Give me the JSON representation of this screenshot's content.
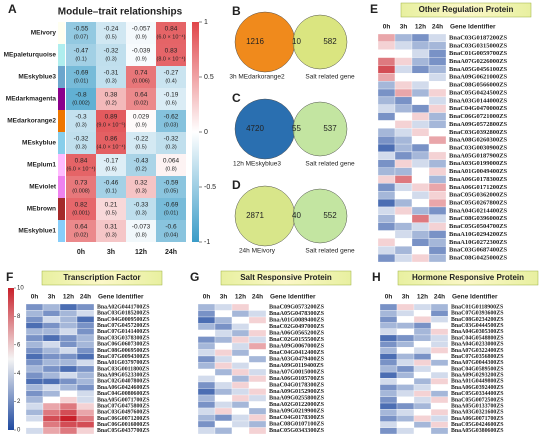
{
  "module_trait": {
    "label": "A",
    "title": "Module–trait relationships",
    "columns": [
      "0h",
      "3h",
      "12h",
      "24h"
    ],
    "rows": [
      "MEivory",
      "MEpaleturquoise",
      "MEskyblue3",
      "MEdarkmagenta",
      "MEdarkorange2",
      "MEskyblue",
      "MEplum1",
      "MEviolet",
      "MEbrown",
      "MEskyblue1"
    ],
    "module_colors": [
      "#fffff0",
      "#afeeee",
      "#6ca6cd",
      "#8b008b",
      "#ee7600",
      "#87ceeb",
      "#ffbbff",
      "#ee82ee",
      "#a52a2a",
      "#87cefa"
    ],
    "values": [
      [
        -0.55,
        -0.24,
        -0.057,
        0.84
      ],
      [
        -0.47,
        -0.32,
        -0.039,
        0.83
      ],
      [
        -0.69,
        -0.31,
        0.74,
        -0.27
      ],
      [
        -0.8,
        0.38,
        0.64,
        -0.19
      ],
      [
        -0.3,
        0.89,
        0.029,
        -0.62
      ],
      [
        -0.32,
        0.86,
        -0.22,
        -0.32
      ],
      [
        0.84,
        -0.17,
        -0.43,
        0.064
      ],
      [
        0.73,
        -0.46,
        0.32,
        -0.59
      ],
      [
        0.82,
        0.21,
        -0.33,
        -0.69
      ],
      [
        0.64,
        0.31,
        -0.073,
        -0.6
      ]
    ],
    "p_labels": [
      [
        "(0.07)",
        "(0.5)",
        "(0.9)",
        "(6.0 × 10⁻⁴)"
      ],
      [
        "(0.1)",
        "(0.3)",
        "(0.9)",
        "(8.0 × 10⁻⁴)"
      ],
      [
        "(0.01)",
        "(0.3)",
        "(0.006)",
        "(0.4)"
      ],
      [
        "(0.002)",
        "(0.2)",
        "(0.02)",
        "(0.6)"
      ],
      [
        "(0.3)",
        "(9.0 × 10⁻⁵)",
        "(0.9)",
        "(0.03)"
      ],
      [
        "(0.3)",
        "(4.0 × 10⁻⁴)",
        "(0.5)",
        "(0.3)"
      ],
      [
        "(6.0 × 10⁻⁴)",
        "(0.6)",
        "(0.2)",
        "(0.8)"
      ],
      [
        "(0.008)",
        "(0.1)",
        "(0.3)",
        "(0.05)"
      ],
      [
        "(0.001)",
        "(0.5)",
        "(0.3)",
        "(0.01)"
      ],
      [
        "(0.02)",
        "(0.3)",
        "(0.8)",
        "(0.04)"
      ]
    ],
    "clim": [
      -1,
      1
    ],
    "cticks": [
      1,
      0.5,
      0,
      -0.5,
      -1
    ]
  },
  "venns": [
    {
      "label": "B",
      "values": [
        1216,
        10,
        582
      ],
      "left_name": "3h MEdarkorange2",
      "right_name": "Salt related gene",
      "colors": [
        "#f08a1c",
        "#d4e06a"
      ]
    },
    {
      "label": "C",
      "values": [
        4720,
        55,
        537
      ],
      "left_name": "12h MEskyblue3",
      "right_name": "Salt related gene",
      "colors": [
        "#2a6fb0",
        "#b8e090"
      ]
    },
    {
      "label": "D",
      "values": [
        2871,
        40,
        552
      ],
      "left_name": "24h MEivory",
      "right_name": "Salt related gene",
      "colors": [
        "#d8e68a",
        "#b8e090"
      ]
    }
  ],
  "gene_panels": [
    {
      "label": "E",
      "title": "Other Regulation  Protein",
      "columns": [
        "0h",
        "3h",
        "12h",
        "24h"
      ],
      "id_header": "Gene Identifier",
      "genes": [
        "BnaC03G0187200ZS",
        "BnaC03G0315000ZS",
        "BnaC01G0059700ZS",
        "BnaA07G0226000ZS",
        "BnaA05G0456100ZS",
        "BnaA09G0621000ZS",
        "BnaC08G0566000ZS",
        "BnaC05G0424500ZS",
        "BnaA03G0144000ZS",
        "BnaC04G0470000ZS",
        "BnaC06G0721000ZS",
        "BnaA09G0572800ZS",
        "BnaC03G0392800ZS",
        "BnaA08G0260300ZS",
        "BnaC03G0030900ZS",
        "BnaA05G0187900ZS",
        "BnaA03G0199000ZS",
        "BnaA01G0049400ZS",
        "BnaA06G0178300ZS",
        "BnaA06G0171200ZS",
        "BnaC05G0362000ZS",
        "BnaC05G0267800ZS",
        "BnaA04G0214400ZS",
        "BnaC08G0396000ZS",
        "BnaC05G0504700ZS",
        "BnaA10G0294200ZS",
        "BnaA10G0272300ZS",
        "BnaC03G0687400ZS",
        "BnaC08G0425000ZS"
      ],
      "values": [
        [
          7,
          3,
          2,
          4
        ],
        [
          6,
          4,
          3,
          3
        ],
        [
          5,
          5,
          4,
          2
        ],
        [
          8,
          6,
          3,
          2
        ],
        [
          9,
          4,
          2,
          3
        ],
        [
          7,
          5,
          5,
          4
        ],
        [
          3,
          6,
          4,
          5
        ],
        [
          2,
          7,
          3,
          6
        ],
        [
          3,
          2,
          5,
          4
        ],
        [
          4,
          3,
          2,
          6
        ],
        [
          2,
          5,
          6,
          3
        ],
        [
          5,
          6,
          4,
          3
        ],
        [
          3,
          4,
          6,
          5
        ],
        [
          2,
          3,
          5,
          7
        ],
        [
          1,
          3,
          2,
          5
        ],
        [
          4,
          2,
          3,
          6
        ],
        [
          2,
          6,
          4,
          3
        ],
        [
          3,
          3,
          5,
          6
        ],
        [
          6,
          8,
          5,
          3
        ],
        [
          2,
          4,
          6,
          7
        ],
        [
          3,
          5,
          4,
          6
        ],
        [
          1,
          3,
          5,
          7
        ],
        [
          4,
          6,
          3,
          2
        ],
        [
          3,
          5,
          8,
          4
        ],
        [
          2,
          3,
          4,
          6
        ],
        [
          5,
          4,
          3,
          2
        ],
        [
          6,
          5,
          2,
          3
        ],
        [
          4,
          3,
          5,
          2
        ],
        [
          2,
          4,
          6,
          3
        ]
      ],
      "clim": [
        0,
        10
      ]
    },
    {
      "label": "F",
      "title": "Transcription Factor",
      "columns": [
        "0h",
        "3h",
        "12h",
        "24h"
      ],
      "id_header": "Gene Identifier",
      "genes": [
        "BnaA02G0441700ZS",
        "BnaC03G0185200ZS",
        "BnaC04G0009500ZS",
        "BnaC07G0457200ZS",
        "BnaC07G0141400ZS",
        "BnaC03G0378300ZS",
        "BnaC06G0607300ZS",
        "BnaC08G0069500ZS",
        "BnaC07G0094300ZS",
        "BnaA01G0379700ZS",
        "BnaC03G0011800ZS",
        "BnaA09G0523300ZS",
        "BnaC02G0407800ZS",
        "BnaA06G0424600ZS",
        "BnaC04G0080600ZS",
        "BnaA05G0071700ZS",
        "BnaC07G0475800ZS",
        "BnaC03G0497600ZS",
        "BnaC06G0071200ZS",
        "BnaC06G0016000ZS",
        "BnaC05G0437700ZS"
      ],
      "values": [
        [
          2,
          3,
          1,
          2
        ],
        [
          3,
          2,
          3,
          4
        ],
        [
          2,
          4,
          3,
          1
        ],
        [
          1,
          2,
          3,
          2
        ],
        [
          3,
          3,
          4,
          2
        ],
        [
          2,
          1,
          2,
          3
        ],
        [
          3,
          4,
          2,
          3
        ],
        [
          2,
          3,
          4,
          2
        ],
        [
          1,
          2,
          2,
          1
        ],
        [
          2,
          3,
          3,
          4
        ],
        [
          3,
          2,
          1,
          2
        ],
        [
          2,
          3,
          4,
          3
        ],
        [
          1,
          1,
          2,
          3
        ],
        [
          3,
          4,
          3,
          2
        ],
        [
          2,
          3,
          5,
          4
        ],
        [
          3,
          5,
          6,
          4
        ],
        [
          4,
          7,
          8,
          6
        ],
        [
          3,
          8,
          9,
          7
        ],
        [
          4,
          9,
          10,
          8
        ],
        [
          5,
          8,
          9,
          9
        ],
        [
          4,
          7,
          8,
          6
        ]
      ],
      "clim": [
        0,
        10
      ],
      "cticks": [
        10,
        8,
        6,
        4,
        2,
        0
      ]
    },
    {
      "label": "G",
      "title": "Salt Responsive Protein",
      "columns": [
        "0h",
        "3h",
        "12h",
        "24h"
      ],
      "id_header": "Gene Identifier",
      "genes": [
        "BnaC09G0573200ZS",
        "BnaA05G0478300ZS",
        "BnaA01G0089400ZS",
        "BnaC02G0497000ZS",
        "BnaA06G0565200ZS",
        "BnaC02G0155500ZS",
        "BnaA09G0067000ZS",
        "BnaC04G0412400ZS",
        "BnaA03G0479400ZS",
        "BnaA09G0119400ZS",
        "BnaA07G0015000ZS",
        "BnaA06G0105700ZS",
        "BnaC04G0178300ZS",
        "BnaA09G0152900ZS",
        "BnaA09G0255800ZS",
        "BnaA02G0122000ZS",
        "BnaA09G0219900ZS",
        "BnaC04G0178300ZS",
        "BnaC08G0107100ZS",
        "BnaC05G0343300ZS"
      ],
      "values": [
        [
          3,
          4,
          6,
          5
        ],
        [
          2,
          5,
          3,
          4
        ],
        [
          1,
          3,
          5,
          6
        ],
        [
          3,
          2,
          4,
          5
        ],
        [
          5,
          4,
          3,
          6
        ],
        [
          2,
          3,
          6,
          4
        ],
        [
          3,
          5,
          4,
          7
        ],
        [
          4,
          6,
          3,
          5
        ],
        [
          2,
          4,
          5,
          3
        ],
        [
          3,
          6,
          4,
          5
        ],
        [
          5,
          3,
          6,
          4
        ],
        [
          4,
          5,
          3,
          6
        ],
        [
          2,
          4,
          6,
          5
        ],
        [
          1,
          3,
          4,
          6
        ],
        [
          3,
          5,
          6,
          4
        ],
        [
          2,
          4,
          3,
          5
        ],
        [
          4,
          6,
          5,
          3
        ],
        [
          3,
          2,
          4,
          6
        ],
        [
          2,
          5,
          4,
          3
        ],
        [
          4,
          3,
          5,
          6
        ]
      ],
      "clim": [
        0,
        10
      ]
    },
    {
      "label": "H",
      "title": "Hormone Responsive Protein",
      "columns": [
        "0h",
        "3h",
        "12h",
        "24h"
      ],
      "id_header": "Gene Identifier",
      "genes": [
        "BnaC01G0118900ZS",
        "BnaC07G0393600ZS",
        "BnaC08G0234200ZS",
        "BnaC03G0444500ZS",
        "BnaA04G0305300ZS",
        "BnaC04G0548800ZS",
        "BnaA04G0233000ZS",
        "BnaA07G0322400ZS",
        "BnaC07G0356800ZS",
        "BnaA07G0044300ZS",
        "BnaC04G0589500ZS",
        "BnaA09G0293200ZS",
        "BnaA01G0449800ZS",
        "BnaA06G0392400ZS",
        "BnaC05G0334400ZS",
        "BnaC05G0072500ZS",
        "BnaA05G0133700ZS",
        "BnaA03G0321600ZS",
        "BnaA06G0071700ZS",
        "BnaC05G0424600ZS",
        "BnaA05G0380600ZS"
      ],
      "values": [
        [
          2,
          6,
          4,
          3
        ],
        [
          3,
          4,
          5,
          2
        ],
        [
          2,
          5,
          6,
          4
        ],
        [
          3,
          3,
          2,
          5
        ],
        [
          4,
          5,
          3,
          6
        ],
        [
          1,
          2,
          3,
          4
        ],
        [
          2,
          3,
          5,
          4
        ],
        [
          3,
          5,
          4,
          6
        ],
        [
          1,
          3,
          2,
          5
        ],
        [
          2,
          4,
          6,
          3
        ],
        [
          3,
          2,
          4,
          5
        ],
        [
          1,
          3,
          5,
          4
        ],
        [
          4,
          5,
          3,
          6
        ],
        [
          2,
          3,
          4,
          5
        ],
        [
          3,
          4,
          6,
          3
        ],
        [
          2,
          5,
          4,
          6
        ],
        [
          1,
          2,
          3,
          5
        ],
        [
          3,
          4,
          5,
          6
        ],
        [
          2,
          3,
          6,
          4
        ],
        [
          4,
          5,
          3,
          6
        ],
        [
          2,
          4,
          5,
          3
        ]
      ],
      "clim": [
        0,
        10
      ]
    }
  ]
}
